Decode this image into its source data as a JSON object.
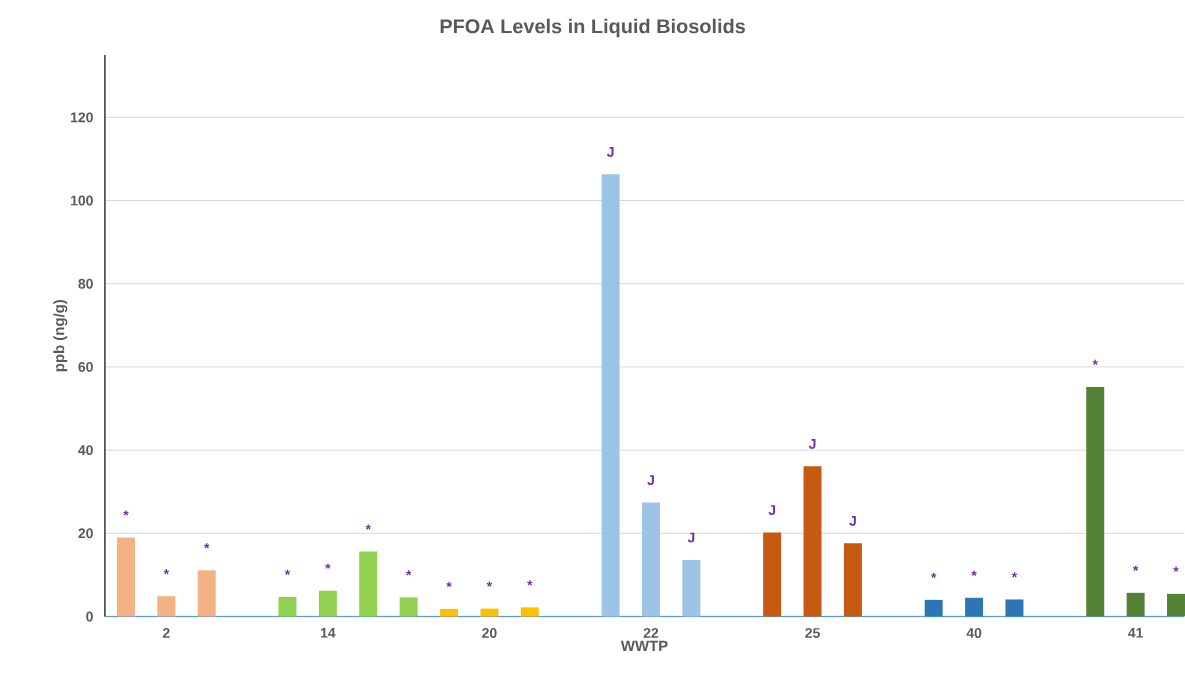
{
  "chart_data": {
    "type": "bar",
    "title": "PFOA Levels in Liquid Biosolids",
    "xlabel": "WWTP",
    "ylabel": "ppb (ng/g)",
    "categories": [
      null,
      "2",
      null,
      null,
      null,
      "14",
      null,
      null,
      null,
      "20",
      null,
      null,
      null,
      "22",
      null,
      null,
      null,
      "25",
      null,
      null,
      null,
      "40",
      null,
      null,
      null,
      "41",
      null
    ],
    "values": [
      19.0,
      4.9,
      11.1,
      null,
      4.7,
      6.2,
      15.6,
      4.6,
      1.8,
      1.9,
      2.2,
      null,
      106.3,
      27.4,
      13.6,
      null,
      20.2,
      36.1,
      17.6,
      null,
      4.0,
      4.5,
      4.1,
      null,
      55.2,
      5.7,
      5.5
    ],
    "colors": [
      "#f4b183",
      "#f4b183",
      "#f4b183",
      null,
      "#92d050",
      "#92d050",
      "#92d050",
      "#92d050",
      "#ffc000",
      "#ffc000",
      "#ffc000",
      null,
      "#9dc3e6",
      "#9dc3e6",
      "#9dc3e6",
      null,
      "#c55a11",
      "#c55a11",
      "#c55a11",
      null,
      "#2e75b6",
      "#2e75b6",
      "#2e75b6",
      null,
      "#548235",
      "#548235",
      "#548235"
    ],
    "value_labels": [
      "*",
      "*",
      "*",
      null,
      "*",
      "*",
      "*",
      "*",
      "*",
      "*",
      "*",
      null,
      "J",
      "J",
      "J",
      null,
      "J",
      "J",
      "J",
      null,
      "*",
      "*",
      "*",
      null,
      "*",
      "*",
      "*"
    ],
    "ylim": [
      0,
      135
    ],
    "yticks": [
      0,
      20,
      40,
      60,
      80,
      100,
      120
    ],
    "grid": "y"
  }
}
